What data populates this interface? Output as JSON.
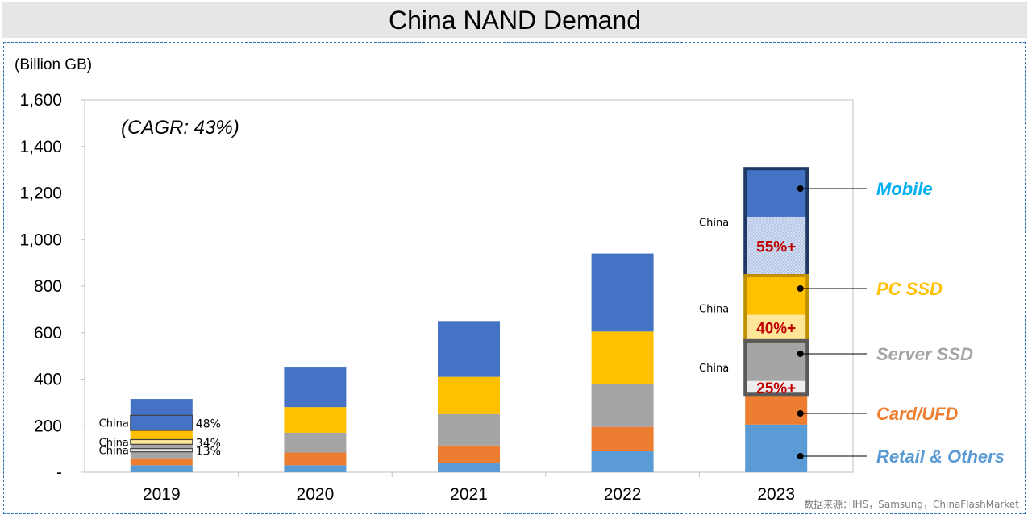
{
  "page": {
    "title": "China NAND Demand",
    "unit_label": "(Billion GB)",
    "source": "数据来源：IHS，Samsung，ChinaFlashMarket"
  },
  "chart_data": {
    "type": "bar",
    "stacked": true,
    "title": "China NAND Demand",
    "ylabel": "(Billion GB)",
    "ylim": [
      0,
      1600
    ],
    "yticks": [
      0,
      200,
      400,
      600,
      800,
      1000,
      1200,
      1400,
      1600
    ],
    "ytick_labels": [
      "-",
      "200",
      "400",
      "600",
      "800",
      "1,000",
      "1,200",
      "1,400",
      "1,600"
    ],
    "categories": [
      "2019",
      "2020",
      "2021",
      "2022",
      "2023"
    ],
    "series": [
      {
        "name": "Retail & Others",
        "color": "#5b9bd5",
        "values": [
          30,
          30,
          40,
          90,
          205
        ]
      },
      {
        "name": "Card/UFD",
        "color": "#ed7d31",
        "values": [
          30,
          55,
          75,
          105,
          130
        ]
      },
      {
        "name": "Server SSD",
        "color": "#a5a5a5",
        "values": [
          60,
          85,
          135,
          185,
          230
        ]
      },
      {
        "name": "PC SSD",
        "color": "#ffc000",
        "values": [
          60,
          110,
          160,
          225,
          280
        ]
      },
      {
        "name": "Mobile",
        "color": "#4472c4",
        "values": [
          135,
          170,
          240,
          335,
          460
        ]
      }
    ],
    "annotation": "(CAGR: 43%)",
    "china_label": "China",
    "china_share_2019": [
      "48%",
      "34%",
      "13%"
    ],
    "china_share_2023": {
      "mobile": "55%+",
      "pc_ssd": "40%+",
      "server_ssd": "25%+"
    },
    "legend_placement": "right",
    "grid": false
  }
}
